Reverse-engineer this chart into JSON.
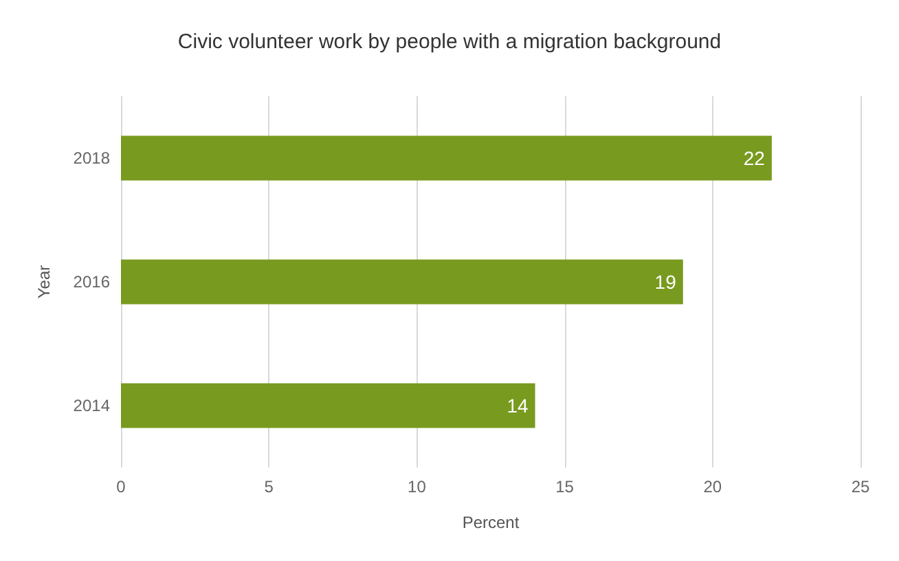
{
  "chart_data": {
    "type": "bar",
    "orientation": "horizontal",
    "title": "Civic volunteer work by people with a migration background",
    "xlabel": "Percent",
    "ylabel": "Year",
    "categories": [
      "2018",
      "2016",
      "2014"
    ],
    "values": [
      22,
      19,
      14
    ],
    "color": "#789a1f",
    "xlim": [
      0,
      25
    ],
    "xticks": [
      0,
      5,
      10,
      15,
      20,
      25
    ],
    "grid": "x",
    "data_labels": true
  }
}
